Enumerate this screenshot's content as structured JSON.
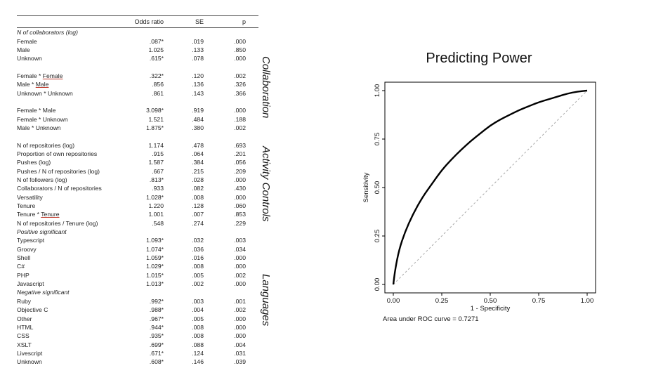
{
  "table": {
    "headers": [
      "",
      "Odds ratio",
      "SE",
      "p"
    ],
    "sections": [
      {
        "title": "N of collaborators (log)",
        "rows": [
          [
            "Female",
            ".087*",
            ".019",
            ".000"
          ],
          [
            "Male",
            "1.025",
            ".133",
            ".850"
          ],
          [
            "Unknown",
            ".615*",
            ".078",
            ".000"
          ],
          null,
          [
            "Female * Female",
            ".322*",
            ".120",
            ".002"
          ],
          [
            "Male * Male",
            ".856",
            ".136",
            ".326"
          ],
          [
            "Unknown * Unknown",
            ".861",
            ".143",
            ".366"
          ],
          null,
          [
            "Female * Male",
            "3.098*",
            ".919",
            ".000"
          ],
          [
            "Female * Unknown",
            "1.521",
            ".484",
            ".188"
          ],
          [
            "Male * Unknown",
            "1.875*",
            ".380",
            ".002"
          ],
          null,
          [
            "N of repositories (log)",
            "1.174",
            ".478",
            ".693"
          ],
          [
            "Proportion of own repositories",
            ".915",
            ".064",
            ".201"
          ],
          [
            "Pushes (log)",
            "1.587",
            ".384",
            ".056"
          ],
          [
            "Pushes / N of repositories (log)",
            ".667",
            ".215",
            ".209"
          ],
          [
            "N of followers (log)",
            ".813*",
            ".028",
            ".000"
          ],
          [
            "Collaborators / N of repositories",
            ".933",
            ".082",
            ".430"
          ],
          [
            "Versatility",
            "1.028*",
            ".008",
            ".000"
          ],
          [
            "Tenure",
            "1.220",
            ".128",
            ".060"
          ],
          [
            "Tenure * Tenure",
            "1.001",
            ".007",
            ".853"
          ],
          [
            "N of repositories / Tenure (log)",
            ".548",
            ".274",
            ".229"
          ]
        ]
      },
      {
        "title": "Positive significant",
        "rows": [
          [
            "Typescript",
            "1.093*",
            ".032",
            ".003"
          ],
          [
            "Groovy",
            "1.074*",
            ".036",
            ".034"
          ],
          [
            "Shell",
            "1.059*",
            ".016",
            ".000"
          ],
          [
            "C#",
            "1.029*",
            ".008",
            ".000"
          ],
          [
            "PHP",
            "1.015*",
            ".005",
            ".002"
          ],
          [
            "Javascript",
            "1.013*",
            ".002",
            ".000"
          ]
        ]
      },
      {
        "title": "Negative significant",
        "rows": [
          [
            "Ruby",
            ".992*",
            ".003",
            ".001"
          ],
          [
            "Objective C",
            ".988*",
            ".004",
            ".002"
          ],
          [
            "Other",
            ".967*",
            ".005",
            ".000"
          ],
          [
            "HTML",
            ".944*",
            ".008",
            ".000"
          ],
          [
            "CSS",
            ".935*",
            ".008",
            ".000"
          ],
          [
            "XSLT",
            ".699*",
            ".088",
            ".004"
          ],
          [
            "Livescript",
            ".671*",
            ".124",
            ".031"
          ],
          [
            "Unknown",
            ".608*",
            ".146",
            ".039"
          ]
        ]
      }
    ]
  },
  "side_labels": {
    "collaboration": "Collaboration",
    "activity": "Activity Controls",
    "languages": "Languages"
  },
  "chart_data": {
    "type": "line",
    "title": "Predicting Power",
    "xlabel": "1 - Specificity",
    "ylabel": "Sensitivity",
    "xlim": [
      0,
      1
    ],
    "ylim": [
      0,
      1
    ],
    "x_ticks": [
      "0.00",
      "0.25",
      "0.50",
      "0.75",
      "1.00"
    ],
    "y_ticks": [
      "0.00",
      "0.25",
      "0.50",
      "0.75",
      "1.00"
    ],
    "annotation": "Area under ROC curve = 0.7271",
    "series": [
      {
        "x": [
          0,
          0.01,
          0.03,
          0.06,
          0.1,
          0.15,
          0.2,
          0.25,
          0.3,
          0.35,
          0.4,
          0.45,
          0.5,
          0.55,
          0.6,
          0.65,
          0.7,
          0.75,
          0.8,
          0.85,
          0.9,
          0.95,
          1.0
        ],
        "y": [
          0,
          0.08,
          0.18,
          0.27,
          0.36,
          0.45,
          0.52,
          0.59,
          0.645,
          0.695,
          0.74,
          0.78,
          0.82,
          0.85,
          0.875,
          0.9,
          0.92,
          0.94,
          0.955,
          0.97,
          0.985,
          0.995,
          1.0
        ],
        "color": "#000000"
      },
      {
        "x": [
          0,
          1
        ],
        "y": [
          0,
          1
        ],
        "color": "#aaaaaa",
        "dashed": true
      }
    ]
  }
}
